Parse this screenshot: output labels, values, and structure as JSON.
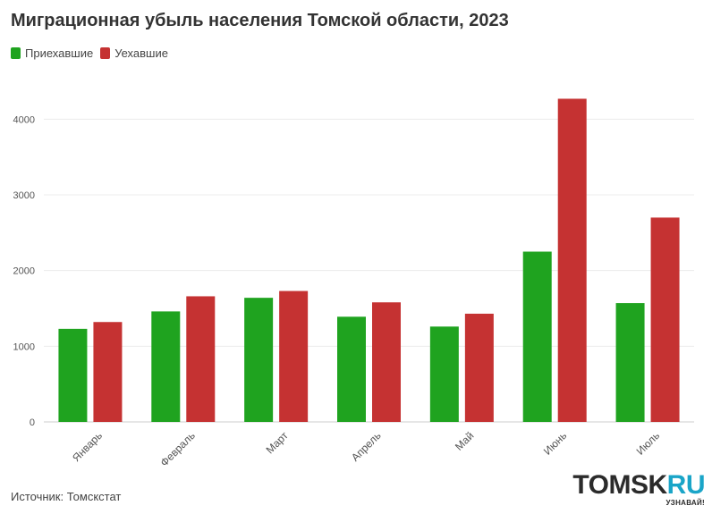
{
  "chart_data": {
    "type": "bar",
    "title": "Миграционная убыль населения Томской области, 2023",
    "categories": [
      "Январь",
      "Февраль",
      "Март",
      "Апрель",
      "Май",
      "Июнь",
      "Июль"
    ],
    "series": [
      {
        "name": "Приехавшие",
        "color": "#1fa31f",
        "values": [
          1230,
          1460,
          1640,
          1390,
          1260,
          2250,
          1570
        ]
      },
      {
        "name": "Уехавшие",
        "color": "#c53232",
        "values": [
          1320,
          1660,
          1730,
          1580,
          1430,
          4270,
          2700
        ]
      }
    ],
    "yticks": [
      0,
      1000,
      2000,
      3000,
      4000
    ],
    "ylim": [
      0,
      4500
    ],
    "grid": true,
    "legend_position": "top-left"
  },
  "footer": {
    "source": "Источник: Томскстат",
    "logo_main": "TOMSK",
    "logo_accent": "RU",
    "tagline": "УЗНАВАЙ!"
  }
}
